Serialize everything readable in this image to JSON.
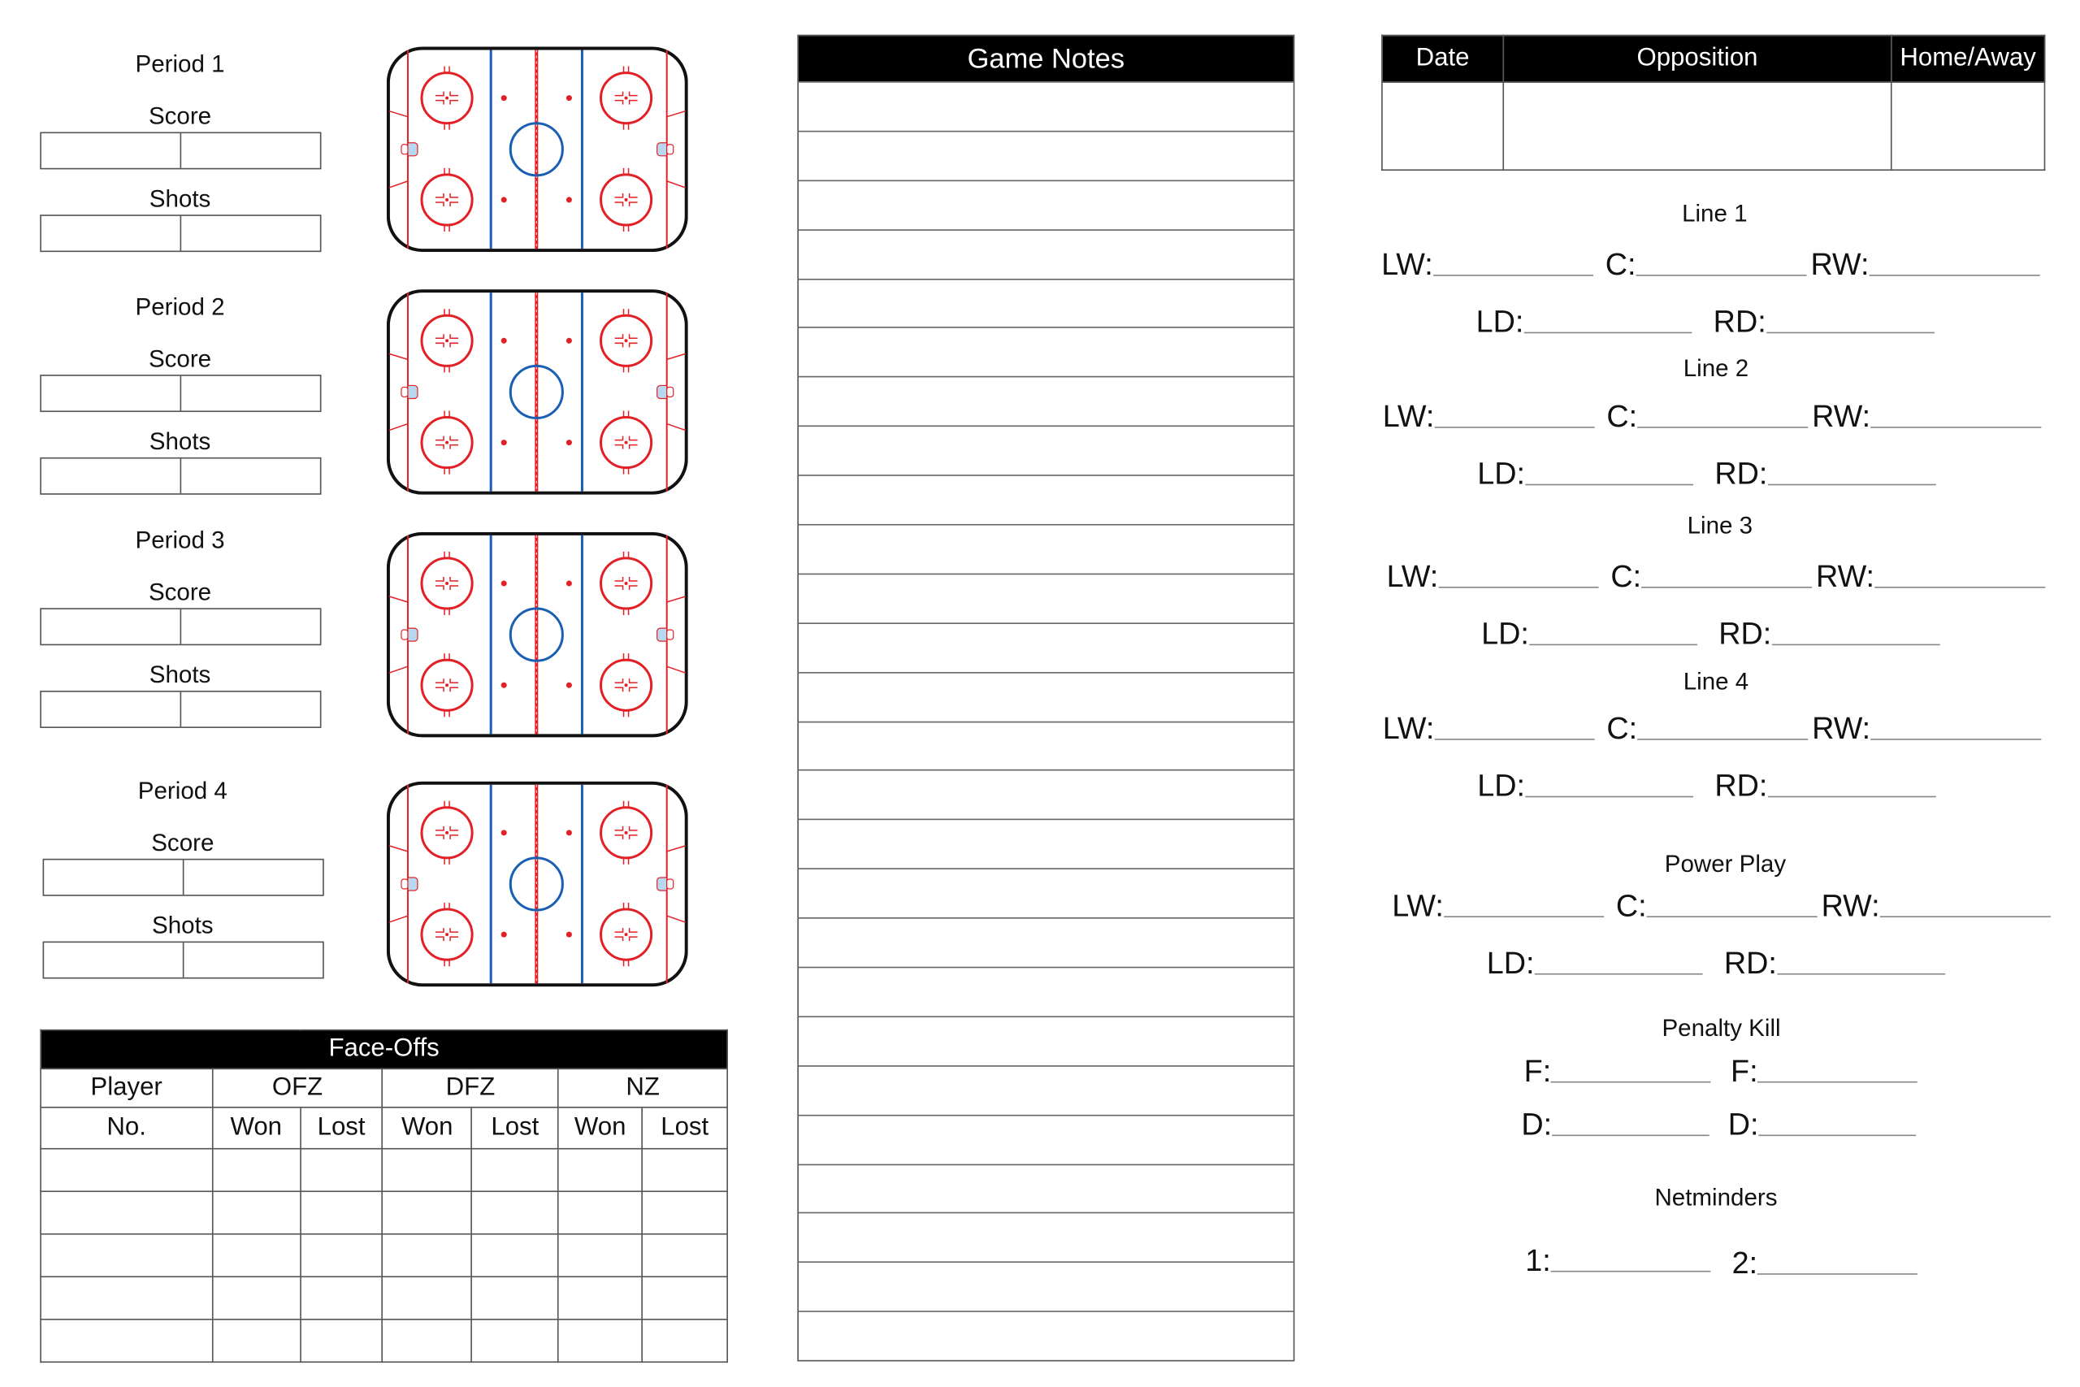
{
  "periods": [
    {
      "title": "Period 1",
      "score_label": "Score",
      "shots_label": "Shots"
    },
    {
      "title": "Period 2",
      "score_label": "Score",
      "shots_label": "Shots"
    },
    {
      "title": "Period 3",
      "score_label": "Score",
      "shots_label": "Shots"
    },
    {
      "title": "Period 4",
      "score_label": "Score",
      "shots_label": "Shots"
    }
  ],
  "rink_colors": {
    "red": "#e32026",
    "blue": "#1a5fb4",
    "border": "#111111",
    "crease": "#b8d8f0"
  },
  "game_notes": {
    "title": "Game Notes",
    "row_count": 26
  },
  "faceoffs": {
    "title": "Face-Offs",
    "header1": [
      "Player",
      "OFZ",
      "DFZ",
      "NZ"
    ],
    "header2": [
      "No.",
      "Won",
      "Lost",
      "Won",
      "Lost",
      "Won",
      "Lost"
    ],
    "row_count": 5
  },
  "game_info": {
    "headers": [
      "Date",
      "Opposition",
      "Home/Away"
    ]
  },
  "lines": [
    {
      "title": "Line 1",
      "lw": "LW:",
      "c": "C:",
      "rw": "RW:",
      "ld": "LD:",
      "rd": "RD:"
    },
    {
      "title": "Line 2",
      "lw": "LW:",
      "c": "C:",
      "rw": "RW:",
      "ld": "LD:",
      "rd": "RD:"
    },
    {
      "title": "Line 3",
      "lw": "LW:",
      "c": "C:",
      "rw": "RW:",
      "ld": "LD:",
      "rd": "RD:"
    },
    {
      "title": "Line 4",
      "lw": "LW:",
      "c": "C:",
      "rw": "RW:",
      "ld": "LD:",
      "rd": "RD:"
    },
    {
      "title": "Power Play",
      "lw": "LW:",
      "c": "C:",
      "rw": "RW:",
      "ld": "LD:",
      "rd": "RD:"
    }
  ],
  "penalty_kill": {
    "title": "Penalty Kill",
    "f1": "F:",
    "f2": "F:",
    "d1": "D:",
    "d2": "D:"
  },
  "netminders": {
    "title": "Netminders",
    "n1": "1:",
    "n2": "2:"
  }
}
